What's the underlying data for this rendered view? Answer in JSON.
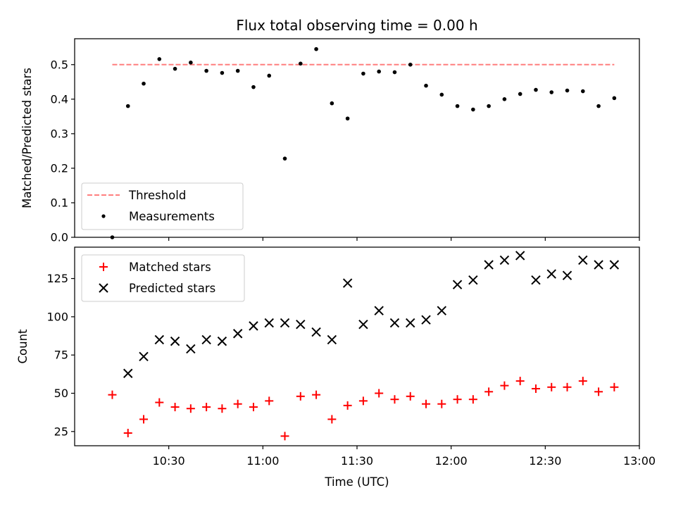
{
  "chart_data": [
    {
      "type": "scatter",
      "title": "Flux total observing time = 0.00 h",
      "xlabel": "",
      "ylabel": "Matched/Predicted stars",
      "ylim": [
        0,
        0.575
      ],
      "yticks": [
        "0.0",
        "0.1",
        "0.2",
        "0.3",
        "0.4",
        "0.5"
      ],
      "legend_position": "lower-left",
      "threshold": {
        "name": "Threshold",
        "value": 0.5,
        "x_start": "10:12",
        "x_end": "12:52",
        "color": "#ff7f7f",
        "style": "dashed"
      },
      "series": [
        {
          "name": "Measurements",
          "color": "#000000",
          "marker": "dot",
          "x": [
            "10:12",
            "10:17",
            "10:22",
            "10:27",
            "10:32",
            "10:37",
            "10:42",
            "10:47",
            "10:52",
            "10:57",
            "11:02",
            "11:07",
            "11:12",
            "11:17",
            "11:22",
            "11:27",
            "11:32",
            "11:37",
            "11:42",
            "11:47",
            "11:52",
            "11:57",
            "12:02",
            "12:07",
            "12:12",
            "12:17",
            "12:22",
            "12:27",
            "12:32",
            "12:37",
            "12:42",
            "12:47",
            "12:52"
          ],
          "y": [
            0.0,
            0.38,
            0.445,
            0.516,
            0.488,
            0.506,
            0.482,
            0.476,
            0.482,
            0.435,
            0.468,
            0.228,
            0.503,
            0.545,
            0.388,
            0.344,
            0.474,
            0.48,
            0.478,
            0.5,
            0.439,
            0.413,
            0.38,
            0.37,
            0.38,
            0.4,
            0.415,
            0.427,
            0.42,
            0.425,
            0.423,
            0.38,
            0.403
          ]
        }
      ]
    },
    {
      "type": "scatter",
      "title": "",
      "xlabel": "Time (UTC)",
      "ylabel": "Count",
      "xlim": [
        "10:00",
        "13:00"
      ],
      "ylim": [
        15.7,
        145.5
      ],
      "xticks": [
        "10:30",
        "11:00",
        "11:30",
        "12:00",
        "12:30",
        "13:00"
      ],
      "yticks": [
        25,
        50,
        75,
        100,
        125
      ],
      "legend_position": "upper-left",
      "series": [
        {
          "name": "Matched stars",
          "color": "#ff0000",
          "marker": "plus",
          "x": [
            "10:12",
            "10:17",
            "10:22",
            "10:27",
            "10:32",
            "10:37",
            "10:42",
            "10:47",
            "10:52",
            "10:57",
            "11:02",
            "11:07",
            "11:12",
            "11:17",
            "11:22",
            "11:27",
            "11:32",
            "11:37",
            "11:42",
            "11:47",
            "11:52",
            "11:57",
            "12:02",
            "12:07",
            "12:12",
            "12:17",
            "12:22",
            "12:27",
            "12:32",
            "12:37",
            "12:42",
            "12:47",
            "12:52"
          ],
          "y": [
            49,
            24,
            33,
            44,
            41,
            40,
            41,
            40,
            43,
            41,
            45,
            22,
            48,
            49,
            33,
            42,
            45,
            50,
            46,
            48,
            43,
            43,
            46,
            46,
            51,
            55,
            58,
            53,
            54,
            54,
            58,
            51,
            54
          ]
        },
        {
          "name": "Predicted stars",
          "color": "#000000",
          "marker": "x",
          "x": [
            "10:17",
            "10:22",
            "10:27",
            "10:32",
            "10:37",
            "10:42",
            "10:47",
            "10:52",
            "10:57",
            "11:02",
            "11:07",
            "11:12",
            "11:17",
            "11:22",
            "11:27",
            "11:32",
            "11:37",
            "11:42",
            "11:47",
            "11:52",
            "11:57",
            "12:02",
            "12:07",
            "12:12",
            "12:17",
            "12:22",
            "12:27",
            "12:32",
            "12:37",
            "12:42",
            "12:47",
            "12:52"
          ],
          "y": [
            63,
            74,
            85,
            84,
            79,
            85,
            84,
            89,
            94,
            96,
            96,
            95,
            90,
            85,
            122,
            95,
            104,
            96,
            96,
            98,
            104,
            121,
            124,
            134,
            137,
            140,
            124,
            128,
            127,
            137,
            134,
            134
          ]
        }
      ]
    }
  ]
}
